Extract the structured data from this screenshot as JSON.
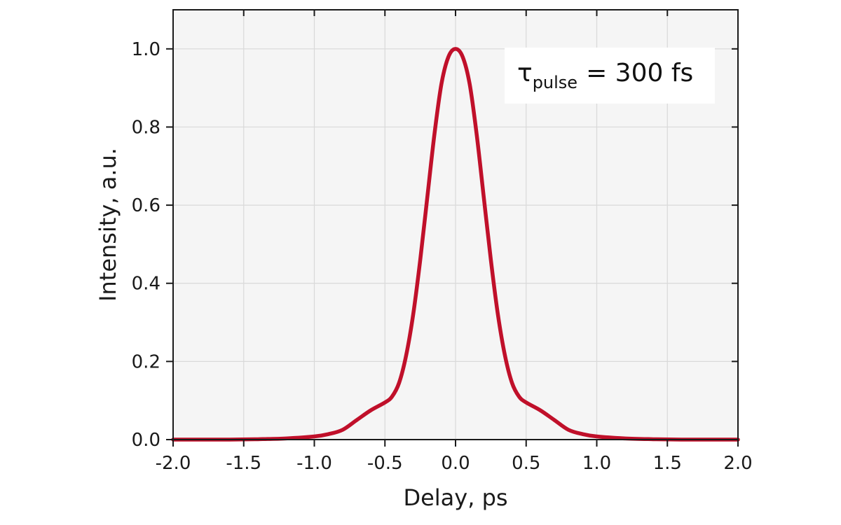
{
  "chart_data": {
    "type": "line",
    "title": "",
    "xlabel": "Delay, ps",
    "ylabel": "Intensity, a.u.",
    "xlim": [
      -2.0,
      2.0
    ],
    "ylim": [
      0.0,
      1.1
    ],
    "x_ticks": [
      "-2.0",
      "-1.5",
      "-1.0",
      "-0.5",
      "0.0",
      "0.5",
      "1.0",
      "1.5",
      "2.0"
    ],
    "y_ticks": [
      "0.0",
      "0.2",
      "0.4",
      "0.6",
      "0.8",
      "1.0"
    ],
    "grid": true,
    "annotation": {
      "symbol": "τ",
      "subscript": "pulse",
      "text": "= 300 fs",
      "position": "top-right"
    },
    "series": [
      {
        "color": "#c0102a",
        "x": [
          -2.0,
          -1.6,
          -1.4,
          -1.2,
          -1.0,
          -0.9,
          -0.8,
          -0.7,
          -0.6,
          -0.5,
          -0.45,
          -0.4,
          -0.35,
          -0.3,
          -0.25,
          -0.2,
          -0.15,
          -0.1,
          -0.05,
          0.0,
          0.05,
          0.1,
          0.15,
          0.2,
          0.25,
          0.3,
          0.35,
          0.4,
          0.45,
          0.5,
          0.6,
          0.7,
          0.8,
          0.9,
          1.0,
          1.2,
          1.4,
          1.6,
          2.0
        ],
        "y": [
          0.0,
          0.0,
          0.001,
          0.003,
          0.008,
          0.014,
          0.025,
          0.05,
          0.075,
          0.095,
          0.11,
          0.145,
          0.215,
          0.32,
          0.46,
          0.62,
          0.78,
          0.91,
          0.98,
          1.0,
          0.98,
          0.91,
          0.78,
          0.62,
          0.46,
          0.32,
          0.215,
          0.145,
          0.11,
          0.095,
          0.075,
          0.05,
          0.025,
          0.014,
          0.008,
          0.003,
          0.001,
          0.0,
          0.0
        ]
      }
    ]
  }
}
